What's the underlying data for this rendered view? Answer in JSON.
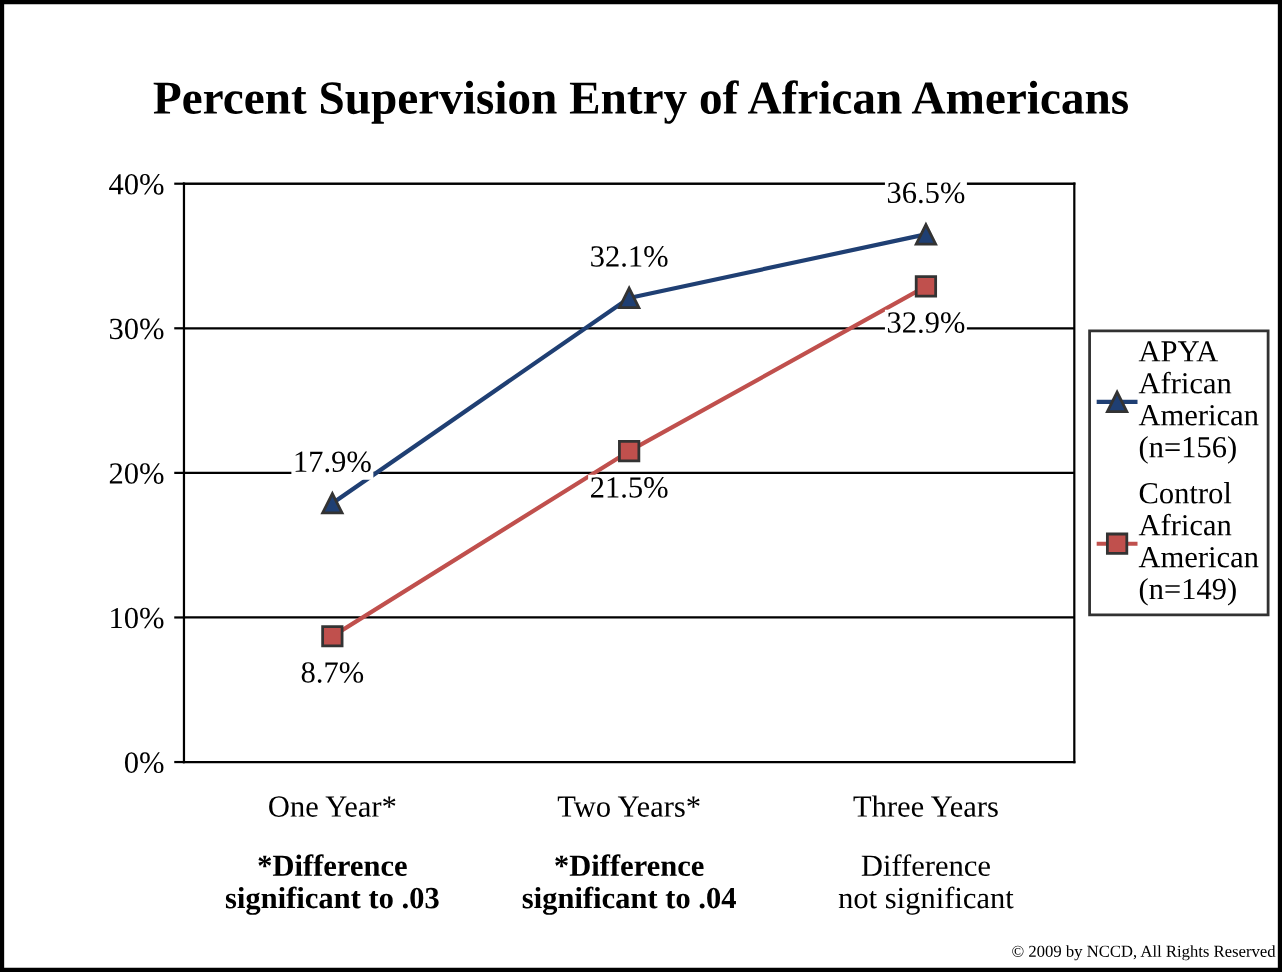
{
  "chart_data": {
    "type": "line",
    "title": "Percent Supervision Entry of African Americans",
    "categories": [
      "One Year*",
      "Two Years*",
      "Three Years"
    ],
    "series": [
      {
        "name": "APYA African American (n=156)",
        "color": "#1f3f73",
        "values": [
          17.9,
          32.1,
          36.5
        ],
        "value_labels": [
          "17.9%",
          "32.1%",
          "36.5%"
        ],
        "marker": "triangle"
      },
      {
        "name": "Control African American (n=149)",
        "color": "#c0504d",
        "values": [
          8.7,
          21.5,
          32.9
        ],
        "value_labels": [
          "8.7%",
          "21.5%",
          "32.9%"
        ],
        "marker": "square"
      }
    ],
    "ylim": [
      0,
      40
    ],
    "yticks": [
      {
        "value": 0,
        "label": "0%"
      },
      {
        "value": 10,
        "label": "10%"
      },
      {
        "value": 20,
        "label": "20%"
      },
      {
        "value": 30,
        "label": "30%"
      },
      {
        "value": 40,
        "label": "40%"
      }
    ],
    "grid": "y",
    "legend": "right",
    "line_style": "solid",
    "annotations": [
      "*Difference significant to .03",
      "*Difference significant to .04",
      "Difference not significant",
      "© 2009 by NCCD, All Rights Reserved"
    ]
  }
}
